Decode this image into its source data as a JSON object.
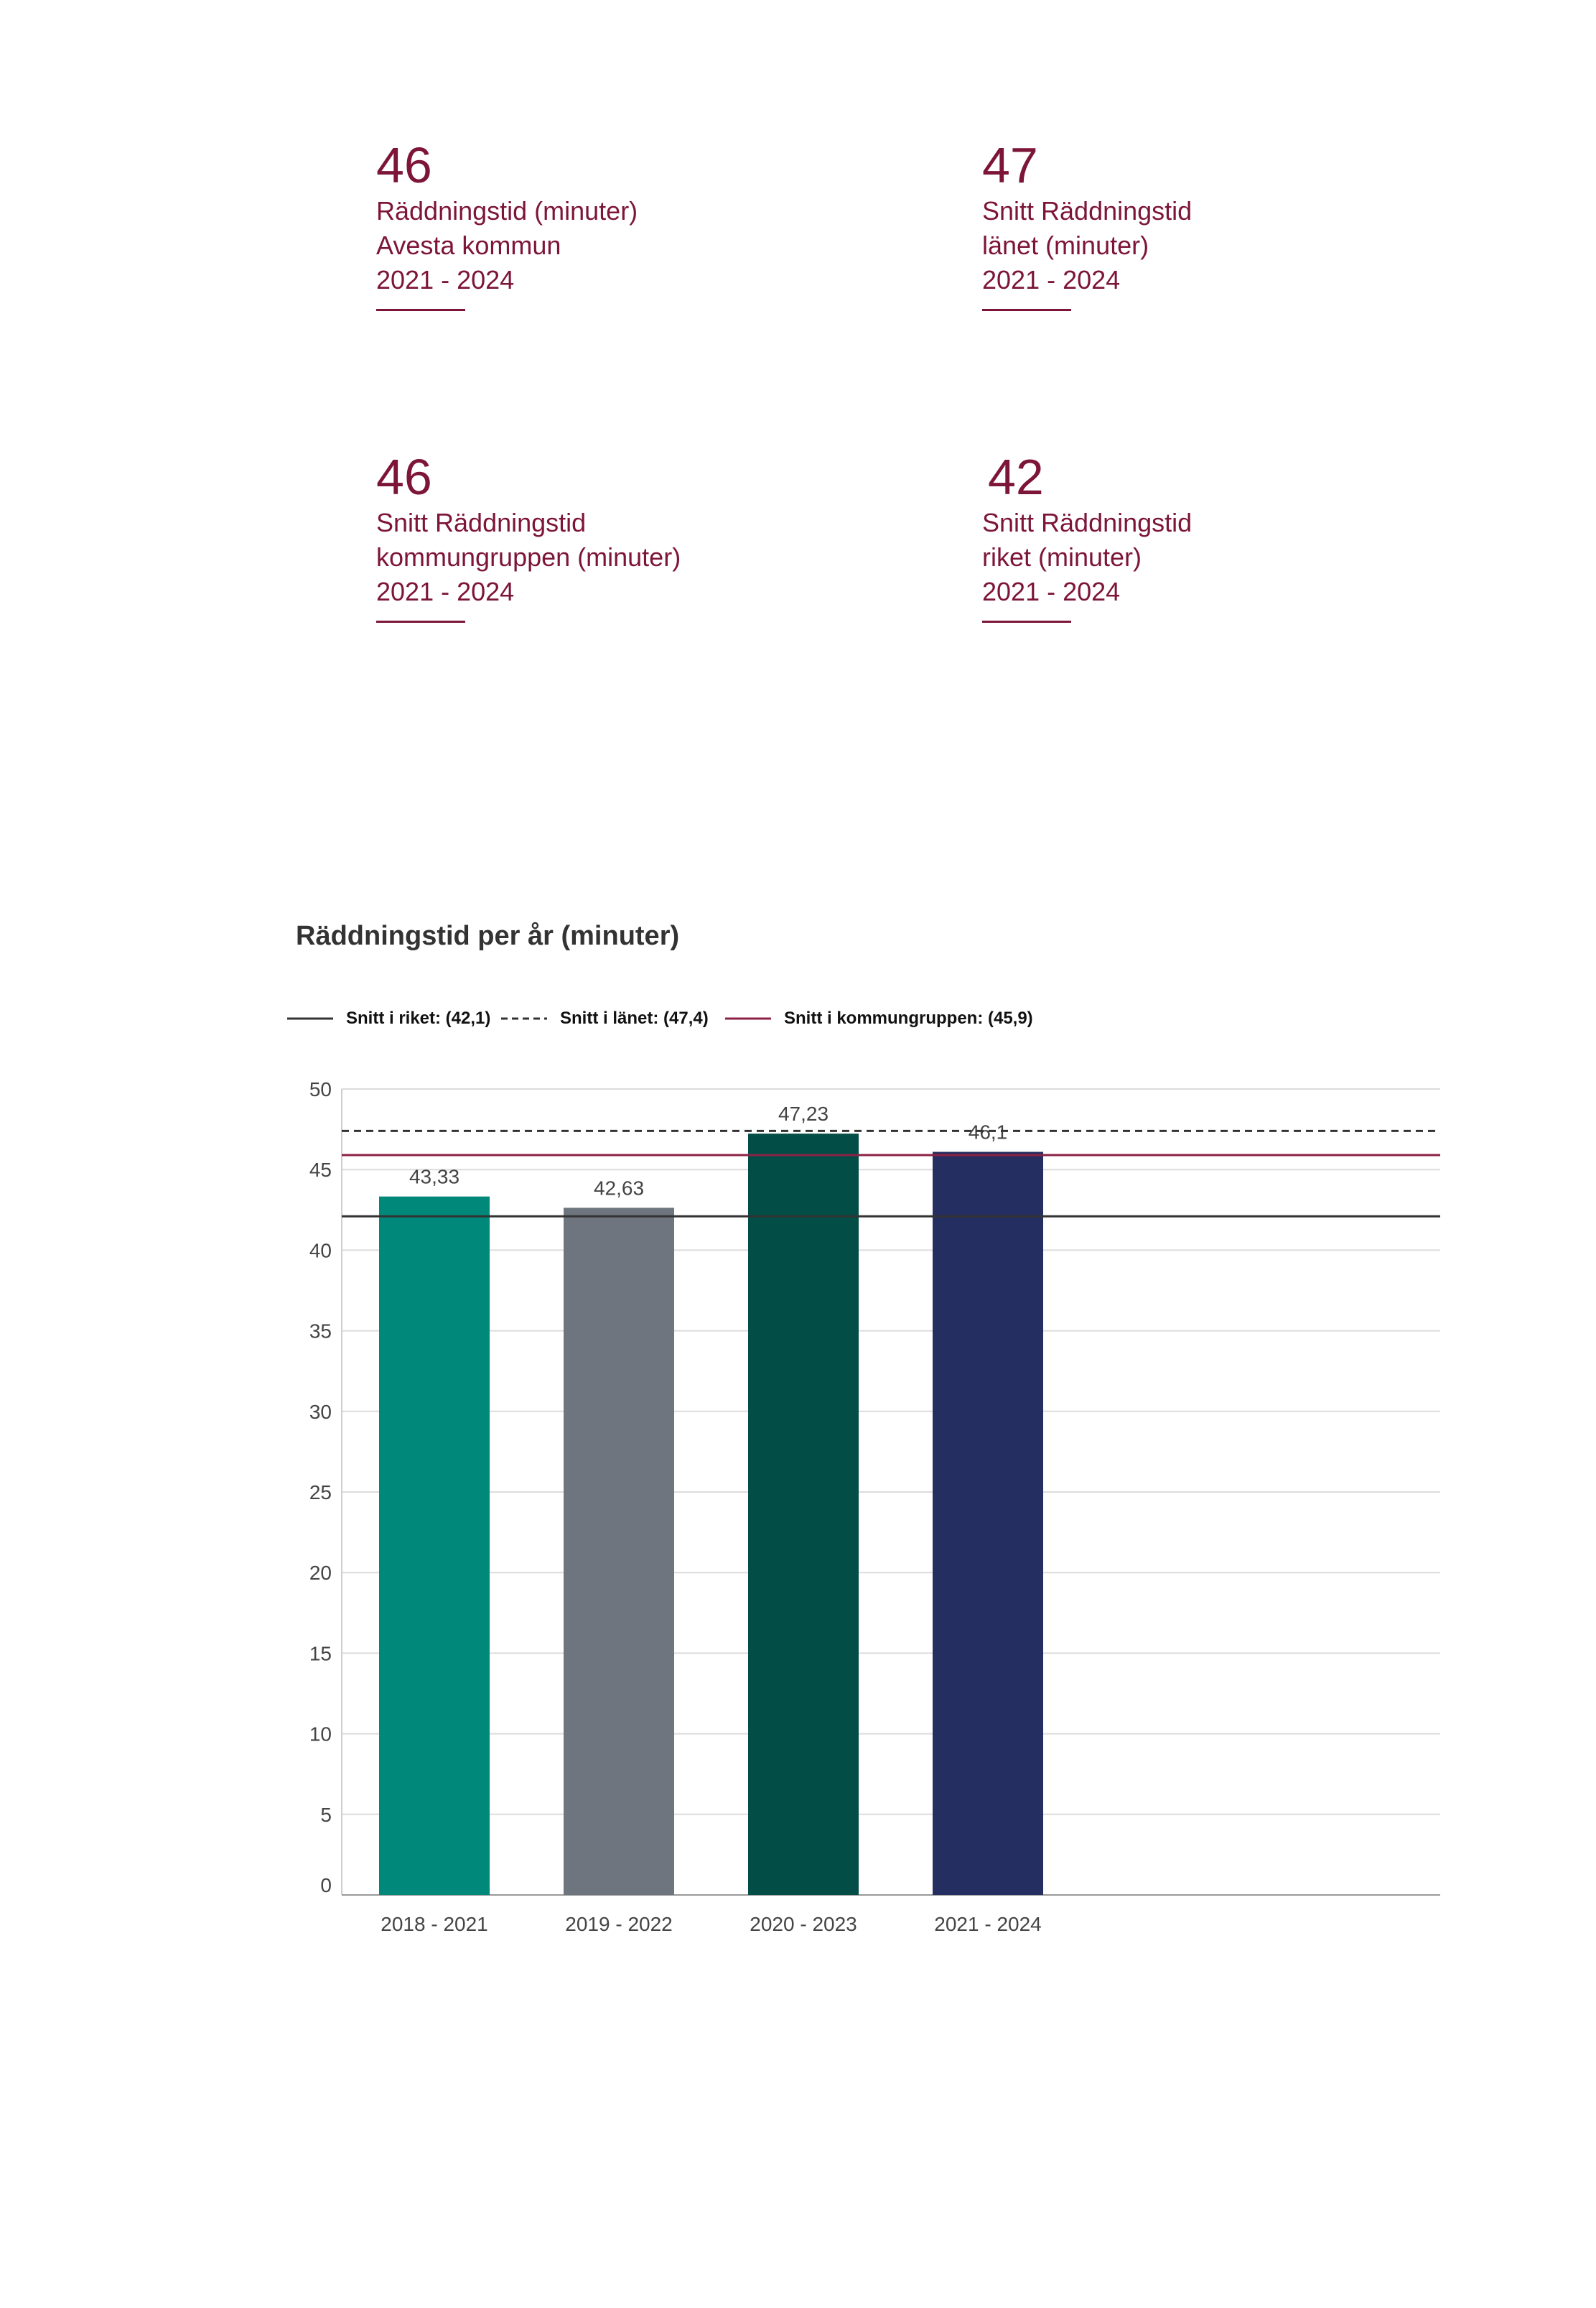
{
  "kpis": [
    {
      "value": "46",
      "lines": [
        "Räddningstid (minuter)",
        "Avesta kommun",
        "2021 - 2024"
      ]
    },
    {
      "value": "47",
      "lines": [
        "Snitt Räddningstid",
        "länet (minuter)",
        "2021 - 2024"
      ]
    },
    {
      "value": "46",
      "lines": [
        "Snitt Räddningstid",
        "kommungruppen (minuter)",
        "2021 - 2024"
      ]
    },
    {
      "value": "42",
      "lines": [
        "Snitt Räddningstid",
        "riket (minuter)",
        "2021 - 2024"
      ]
    }
  ],
  "colors": {
    "accent": "#7d1538"
  },
  "chart_data": {
    "type": "bar",
    "title": "Räddningstid per år (minuter)",
    "categories": [
      "2018 - 2021",
      "2019 - 2022",
      "2020 - 2023",
      "2021 - 2024"
    ],
    "values": [
      43.33,
      42.63,
      47.23,
      46.1
    ],
    "value_labels": [
      "43,33",
      "42,63",
      "47,23",
      "46,1"
    ],
    "bar_colors": [
      "#00897b",
      "#6e757e",
      "#024e46",
      "#252e60"
    ],
    "ylim": [
      0,
      50
    ],
    "yticks": [
      0,
      5,
      10,
      15,
      20,
      25,
      30,
      35,
      40,
      45,
      50
    ],
    "grid": true,
    "legend_position": "top-left",
    "reference_lines": [
      {
        "label": "Snitt i riket: (42,1)",
        "value": 42.1,
        "style": "solid",
        "color": "#333333"
      },
      {
        "label": "Snitt i länet: (47,4)",
        "value": 47.4,
        "style": "dashed",
        "color": "#333333"
      },
      {
        "label": "Snitt i kommungruppen: (45,9)",
        "value": 45.9,
        "style": "solid",
        "color": "#8b2245"
      }
    ]
  }
}
